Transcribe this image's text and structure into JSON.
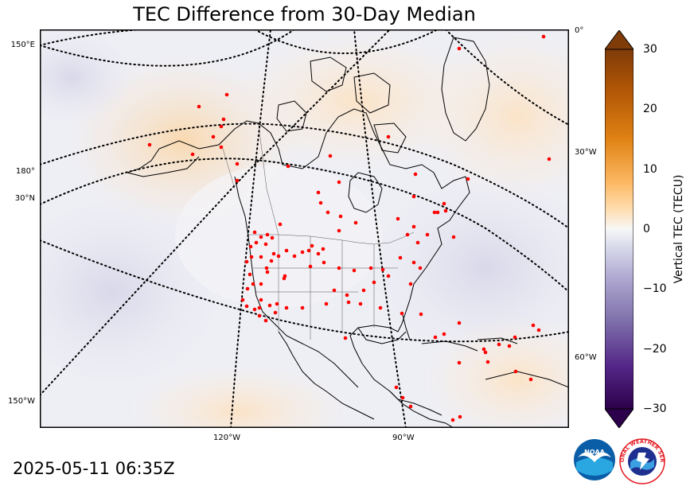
{
  "title": "TEC Difference from 30-Day Median",
  "timestamp": "2025-05-11 06:35Z",
  "colorbar": {
    "label": "Vertical TEC (TECU)",
    "ticks": [
      "30",
      "20",
      "10",
      "0",
      "−10",
      "−20",
      "−30"
    ],
    "min": -30,
    "max": 30,
    "colors": {
      "max": "#7f3b08",
      "high": "#f1a340",
      "mid": "#f7f7f7",
      "low": "#998ec3",
      "min": "#2d004b"
    }
  },
  "edge_labels": {
    "left": [
      "150°E",
      "180°",
      "30°N",
      "150°W"
    ],
    "right": [
      "0°",
      "30°W",
      "60°W"
    ],
    "bottom": [
      "120°W",
      "90°W"
    ]
  },
  "logos": {
    "noaa": "NOAA",
    "nws": "NATIONAL WEATHER SERVICE"
  },
  "colors": {
    "station_dot": "#ff0000",
    "coastline": "#000000",
    "graticule": "#000000"
  }
}
